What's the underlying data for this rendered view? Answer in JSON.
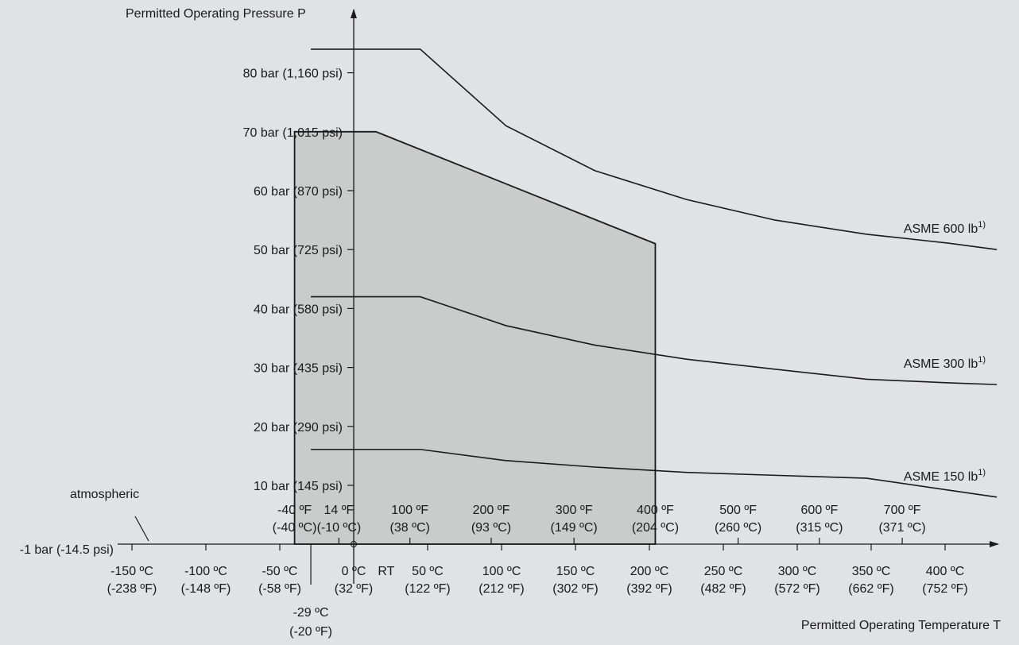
{
  "chart_data": {
    "type": "line",
    "title": "",
    "ylabel": "Permitted Operating Pressure P",
    "xlabel": "Permitted Operating Temperature T",
    "xlim": [
      -200,
      435
    ],
    "ylim": [
      -1,
      94
    ],
    "atmospheric_label": "atmospheric",
    "atmospheric_value": "-1 bar (-14.5 psi)",
    "origin_mark": "0",
    "y_ticks": [
      {
        "value": 10,
        "label": "10 bar (145 psi)"
      },
      {
        "value": 20,
        "label": "20 bar (290 psi)"
      },
      {
        "value": 30,
        "label": "30 bar (435 psi)"
      },
      {
        "value": 40,
        "label": "40 bar (580 psi)"
      },
      {
        "value": 50,
        "label": "50 bar (725 psi)"
      },
      {
        "value": 60,
        "label": "60 bar (870 psi)"
      },
      {
        "value": 70,
        "label": "70 bar (1,015 psi)"
      },
      {
        "value": 80,
        "label": "80 bar (1,160 psi)"
      }
    ],
    "x_ticks_celsius": [
      {
        "value": -150,
        "line1": "-150 ºC",
        "line2": "(-238 ºF)"
      },
      {
        "value": -100,
        "line1": "-100 ºC",
        "line2": "(-148 ºF)"
      },
      {
        "value": -50,
        "line1": "-50 ºC",
        "line2": "(-58 ºF)"
      },
      {
        "value": 0,
        "line1": "0 ºC",
        "line2": "(32 ºF)"
      },
      {
        "value": 50,
        "line1": "50 ºC",
        "line2": "(122 ºF)"
      },
      {
        "value": 100,
        "line1": "100 ºC",
        "line2": "(212 ºF)"
      },
      {
        "value": 150,
        "line1": "150 ºC",
        "line2": "(302 ºF)"
      },
      {
        "value": 200,
        "line1": "200 ºC",
        "line2": "(392 ºF)"
      },
      {
        "value": 250,
        "line1": "250 ºC",
        "line2": "(482 ºF)"
      },
      {
        "value": 300,
        "line1": "300 ºC",
        "line2": "(572 ºF)"
      },
      {
        "value": 350,
        "line1": "350 ºC",
        "line2": "(662 ºF)"
      },
      {
        "value": 400,
        "line1": "400 ºC",
        "line2": "(752 ºF)"
      }
    ],
    "rt_label": {
      "value": 22,
      "label": "RT"
    },
    "x_ticks_fahrenheit": [
      {
        "value": -40,
        "line1": "-40 ºF",
        "line2": "(-40 ºC)"
      },
      {
        "value": -10,
        "line1": "14 ºF",
        "line2": "(-10 ºC)"
      },
      {
        "value": 38,
        "line1": "100 ºF",
        "line2": "(38 ºC)"
      },
      {
        "value": 93,
        "line1": "200 ºF",
        "line2": "(93 ºC)"
      },
      {
        "value": 149,
        "line1": "300 ºF",
        "line2": "(149 ºC)"
      },
      {
        "value": 204,
        "line1": "400 ºF",
        "line2": "(204 ºC)"
      },
      {
        "value": 260,
        "line1": "500 ºF",
        "line2": "(260 ºC)"
      },
      {
        "value": 315,
        "line1": "600 ºF",
        "line2": "(315 ºC)"
      },
      {
        "value": 371,
        "line1": "700 ºF",
        "line2": "(371 ºC)"
      }
    ],
    "min_temp_marker": {
      "value": -29,
      "line1": "-29 ºC",
      "line2": "(-20 ºF)"
    },
    "operating_region": {
      "points": [
        [
          -40,
          -1
        ],
        [
          -40,
          70
        ],
        [
          15,
          70
        ],
        [
          204,
          51
        ],
        [
          204,
          -1
        ]
      ]
    },
    "series": [
      {
        "name": "ASME 600 lb",
        "superscript": "1)",
        "points": [
          [
            -29,
            84
          ],
          [
            45,
            84
          ],
          [
            103,
            71
          ],
          [
            163,
            63.4
          ],
          [
            225,
            58.5
          ],
          [
            285,
            55.0
          ],
          [
            347,
            52.6
          ],
          [
            402,
            51.1
          ],
          [
            435,
            50.0
          ]
        ]
      },
      {
        "name": "ASME 300 lb",
        "superscript": "1)",
        "points": [
          [
            -29,
            42
          ],
          [
            45,
            42
          ],
          [
            103,
            37.1
          ],
          [
            163,
            33.8
          ],
          [
            225,
            31.4
          ],
          [
            285,
            29.7
          ],
          [
            347,
            28.0
          ],
          [
            402,
            27.4
          ],
          [
            435,
            27.1
          ]
        ]
      },
      {
        "name": "ASME 150 lb",
        "superscript": "1)",
        "points": [
          [
            -29,
            16.1
          ],
          [
            45,
            16.1
          ],
          [
            103,
            14.2
          ],
          [
            163,
            13.1
          ],
          [
            225,
            12.2
          ],
          [
            285,
            11.7
          ],
          [
            347,
            11.2
          ],
          [
            402,
            9.2
          ],
          [
            435,
            8.0
          ]
        ]
      }
    ]
  }
}
